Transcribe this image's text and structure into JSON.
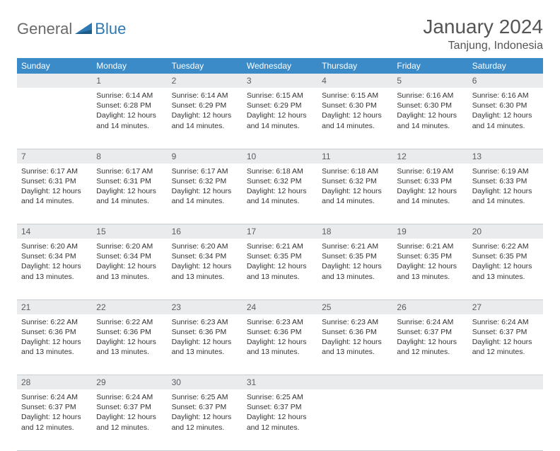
{
  "branding": {
    "text_general": "General",
    "text_blue": "Blue",
    "logo_color": "#2f79b3"
  },
  "header": {
    "title": "January 2024",
    "location": "Tanjung, Indonesia"
  },
  "colors": {
    "header_bg": "#3b8bc9",
    "header_text": "#ffffff",
    "daynum_bg": "#e9ebec",
    "border": "#c8cdd1",
    "text": "#333333"
  },
  "weekdays": [
    "Sunday",
    "Monday",
    "Tuesday",
    "Wednesday",
    "Thursday",
    "Friday",
    "Saturday"
  ],
  "weeks": [
    [
      null,
      {
        "n": "1",
        "sr": "6:14 AM",
        "ss": "6:28 PM",
        "dl": "12 hours and 14 minutes."
      },
      {
        "n": "2",
        "sr": "6:14 AM",
        "ss": "6:29 PM",
        "dl": "12 hours and 14 minutes."
      },
      {
        "n": "3",
        "sr": "6:15 AM",
        "ss": "6:29 PM",
        "dl": "12 hours and 14 minutes."
      },
      {
        "n": "4",
        "sr": "6:15 AM",
        "ss": "6:30 PM",
        "dl": "12 hours and 14 minutes."
      },
      {
        "n": "5",
        "sr": "6:16 AM",
        "ss": "6:30 PM",
        "dl": "12 hours and 14 minutes."
      },
      {
        "n": "6",
        "sr": "6:16 AM",
        "ss": "6:30 PM",
        "dl": "12 hours and 14 minutes."
      }
    ],
    [
      {
        "n": "7",
        "sr": "6:17 AM",
        "ss": "6:31 PM",
        "dl": "12 hours and 14 minutes."
      },
      {
        "n": "8",
        "sr": "6:17 AM",
        "ss": "6:31 PM",
        "dl": "12 hours and 14 minutes."
      },
      {
        "n": "9",
        "sr": "6:17 AM",
        "ss": "6:32 PM",
        "dl": "12 hours and 14 minutes."
      },
      {
        "n": "10",
        "sr": "6:18 AM",
        "ss": "6:32 PM",
        "dl": "12 hours and 14 minutes."
      },
      {
        "n": "11",
        "sr": "6:18 AM",
        "ss": "6:32 PM",
        "dl": "12 hours and 14 minutes."
      },
      {
        "n": "12",
        "sr": "6:19 AM",
        "ss": "6:33 PM",
        "dl": "12 hours and 14 minutes."
      },
      {
        "n": "13",
        "sr": "6:19 AM",
        "ss": "6:33 PM",
        "dl": "12 hours and 14 minutes."
      }
    ],
    [
      {
        "n": "14",
        "sr": "6:20 AM",
        "ss": "6:34 PM",
        "dl": "12 hours and 13 minutes."
      },
      {
        "n": "15",
        "sr": "6:20 AM",
        "ss": "6:34 PM",
        "dl": "12 hours and 13 minutes."
      },
      {
        "n": "16",
        "sr": "6:20 AM",
        "ss": "6:34 PM",
        "dl": "12 hours and 13 minutes."
      },
      {
        "n": "17",
        "sr": "6:21 AM",
        "ss": "6:35 PM",
        "dl": "12 hours and 13 minutes."
      },
      {
        "n": "18",
        "sr": "6:21 AM",
        "ss": "6:35 PM",
        "dl": "12 hours and 13 minutes."
      },
      {
        "n": "19",
        "sr": "6:21 AM",
        "ss": "6:35 PM",
        "dl": "12 hours and 13 minutes."
      },
      {
        "n": "20",
        "sr": "6:22 AM",
        "ss": "6:35 PM",
        "dl": "12 hours and 13 minutes."
      }
    ],
    [
      {
        "n": "21",
        "sr": "6:22 AM",
        "ss": "6:36 PM",
        "dl": "12 hours and 13 minutes."
      },
      {
        "n": "22",
        "sr": "6:22 AM",
        "ss": "6:36 PM",
        "dl": "12 hours and 13 minutes."
      },
      {
        "n": "23",
        "sr": "6:23 AM",
        "ss": "6:36 PM",
        "dl": "12 hours and 13 minutes."
      },
      {
        "n": "24",
        "sr": "6:23 AM",
        "ss": "6:36 PM",
        "dl": "12 hours and 13 minutes."
      },
      {
        "n": "25",
        "sr": "6:23 AM",
        "ss": "6:36 PM",
        "dl": "12 hours and 13 minutes."
      },
      {
        "n": "26",
        "sr": "6:24 AM",
        "ss": "6:37 PM",
        "dl": "12 hours and 12 minutes."
      },
      {
        "n": "27",
        "sr": "6:24 AM",
        "ss": "6:37 PM",
        "dl": "12 hours and 12 minutes."
      }
    ],
    [
      {
        "n": "28",
        "sr": "6:24 AM",
        "ss": "6:37 PM",
        "dl": "12 hours and 12 minutes."
      },
      {
        "n": "29",
        "sr": "6:24 AM",
        "ss": "6:37 PM",
        "dl": "12 hours and 12 minutes."
      },
      {
        "n": "30",
        "sr": "6:25 AM",
        "ss": "6:37 PM",
        "dl": "12 hours and 12 minutes."
      },
      {
        "n": "31",
        "sr": "6:25 AM",
        "ss": "6:37 PM",
        "dl": "12 hours and 12 minutes."
      },
      null,
      null,
      null
    ]
  ],
  "labels": {
    "sunrise": "Sunrise:",
    "sunset": "Sunset:",
    "daylight": "Daylight:"
  }
}
